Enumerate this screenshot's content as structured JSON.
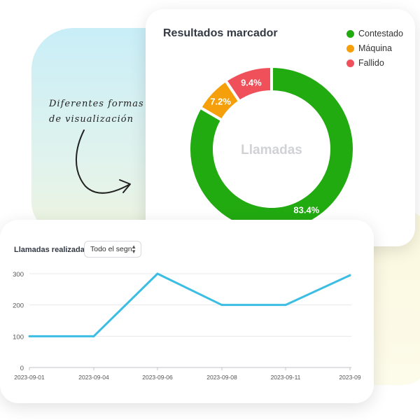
{
  "annotation": {
    "line1": "Diferentes formas",
    "line2": "de visualización"
  },
  "donut_card": {
    "title": "Resultados marcador",
    "center_label": "Llamadas",
    "legend": [
      {
        "label": "Contestado",
        "color": "#22aa11"
      },
      {
        "label": "Máquina",
        "color": "#f5a00a"
      },
      {
        "label": "Fallido",
        "color": "#f0505a"
      }
    ]
  },
  "line_card": {
    "label": "Llamadas realizadas:",
    "select_value": "Todo el segn",
    "line_color": "#3bbde4"
  },
  "chart_data": [
    {
      "type": "pie",
      "title": "Resultados marcador",
      "labels": [
        "Contestado",
        "Máquina",
        "Fallido"
      ],
      "values": [
        83.4,
        7.2,
        9.4
      ],
      "value_labels": [
        "83.4%",
        "7.2%",
        "9.4%"
      ],
      "colors": [
        "#22aa11",
        "#f5a00a",
        "#f0505a"
      ],
      "legend": "top-right"
    },
    {
      "type": "line",
      "x": [
        "2023-09-01",
        "2023-09-04",
        "2023-09-06",
        "2023-09-08",
        "2023-09-11",
        "2023-09"
      ],
      "series": [
        {
          "values": [
            100,
            100,
            300,
            200,
            200,
            295
          ]
        }
      ],
      "yticks": [
        0,
        100,
        200,
        300
      ],
      "ylim": [
        0,
        300
      ],
      "grid": true
    }
  ]
}
